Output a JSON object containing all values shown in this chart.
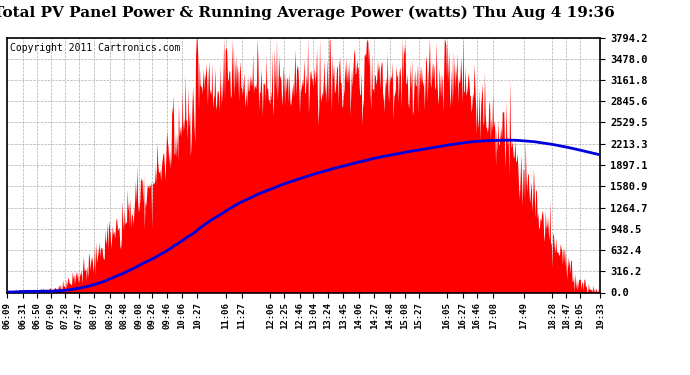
{
  "title": "Total PV Panel Power & Running Average Power (watts) Thu Aug 4 19:36",
  "copyright": "Copyright 2011 Cartronics.com",
  "background_color": "#ffffff",
  "plot_bg_color": "#ffffff",
  "grid_color": "#999999",
  "ytick_labels": [
    "0.0",
    "316.2",
    "632.4",
    "948.5",
    "1264.7",
    "1580.9",
    "1897.1",
    "2213.3",
    "2529.5",
    "2845.6",
    "3161.8",
    "3478.0",
    "3794.2"
  ],
  "ytick_values": [
    0.0,
    316.2,
    632.4,
    948.5,
    1264.7,
    1580.9,
    1897.1,
    2213.3,
    2529.5,
    2845.6,
    3161.8,
    3478.0,
    3794.2
  ],
  "ymax": 3794.2,
  "xtick_labels": [
    "06:09",
    "06:31",
    "06:50",
    "07:09",
    "07:28",
    "07:47",
    "08:07",
    "08:29",
    "08:48",
    "09:08",
    "09:26",
    "09:46",
    "10:06",
    "10:27",
    "11:06",
    "11:27",
    "12:06",
    "12:25",
    "12:46",
    "13:04",
    "13:24",
    "13:45",
    "14:06",
    "14:27",
    "14:48",
    "15:08",
    "15:27",
    "16:05",
    "16:27",
    "16:46",
    "17:08",
    "17:49",
    "18:28",
    "18:47",
    "19:05",
    "19:33"
  ],
  "fill_color": "#ff0000",
  "line_color": "#0000dd",
  "line_width": 2.0,
  "title_fontsize": 11,
  "copyright_fontsize": 7
}
